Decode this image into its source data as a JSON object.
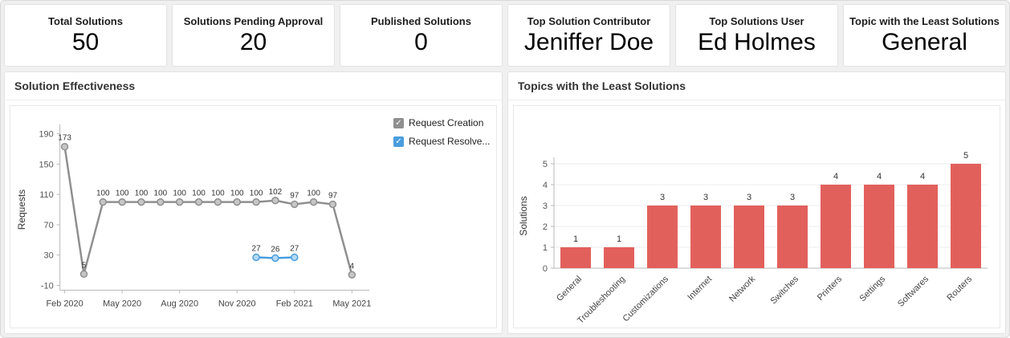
{
  "kpi_cards": [
    {
      "label": "Total Solutions",
      "value": "50"
    },
    {
      "label": "Solutions Pending Approval",
      "value": "20"
    },
    {
      "label": "Published Solutions",
      "value": "0"
    },
    {
      "label": "Top Solution Contributor",
      "value": "Jeniffer Doe"
    },
    {
      "label": "Top Solutions User",
      "value": "Ed Holmes"
    },
    {
      "label": "Topic with the Least Solutions",
      "value": "General"
    }
  ],
  "panels": {
    "effectiveness": {
      "title": "Solution Effectiveness"
    },
    "least_topics": {
      "title": "Topics with the Least Solutions"
    }
  },
  "chart_data": [
    {
      "type": "line",
      "title": "Solution Effectiveness",
      "xlabel": "",
      "ylabel": "Requests",
      "x": [
        "Feb 2020",
        "Mar 2020",
        "Apr 2020",
        "May 2020",
        "Jun 2020",
        "Jul 2020",
        "Aug 2020",
        "Sep 2020",
        "Oct 2020",
        "Nov 2020",
        "Dec 2020",
        "Jan 2021",
        "Feb 2021",
        "Mar 2021",
        "Apr 2021",
        "May 2021"
      ],
      "x_ticks": [
        "Feb 2020",
        "May 2020",
        "Aug 2020",
        "Nov 2020",
        "Feb 2021",
        "May 2021"
      ],
      "y_ticks": [
        190,
        150,
        110,
        70,
        30,
        -10
      ],
      "ylim": [
        -10,
        190
      ],
      "grid": false,
      "legend_position": "right",
      "series": [
        {
          "name": "Request Creation",
          "color": "#8f8f8f",
          "marker_fill": "#c6c6c6",
          "values": [
            173,
            5,
            100,
            100,
            100,
            100,
            100,
            100,
            100,
            100,
            100,
            102,
            97,
            100,
            97,
            4
          ]
        },
        {
          "name": "Request Resolve...",
          "color": "#4a9ede",
          "marker_fill": "#b5d8f3",
          "values": [
            null,
            null,
            null,
            null,
            null,
            null,
            null,
            null,
            null,
            null,
            27,
            26,
            27,
            null,
            null,
            null
          ]
        }
      ]
    },
    {
      "type": "bar",
      "title": "Topics with the Least Solutions",
      "xlabel": "",
      "ylabel": "Solutions",
      "categories": [
        "General",
        "Troubleshooting",
        "Customizations",
        "Internet",
        "Network",
        "Switches",
        "Printers",
        "Settings",
        "Softwares",
        "Routers"
      ],
      "values": [
        1,
        1,
        3,
        3,
        3,
        3,
        4,
        4,
        4,
        5
      ],
      "y_ticks": [
        0,
        1,
        2,
        3,
        4,
        5
      ],
      "ylim": [
        0,
        5.5
      ],
      "grid": true,
      "bar_color": "#e2605c"
    }
  ]
}
